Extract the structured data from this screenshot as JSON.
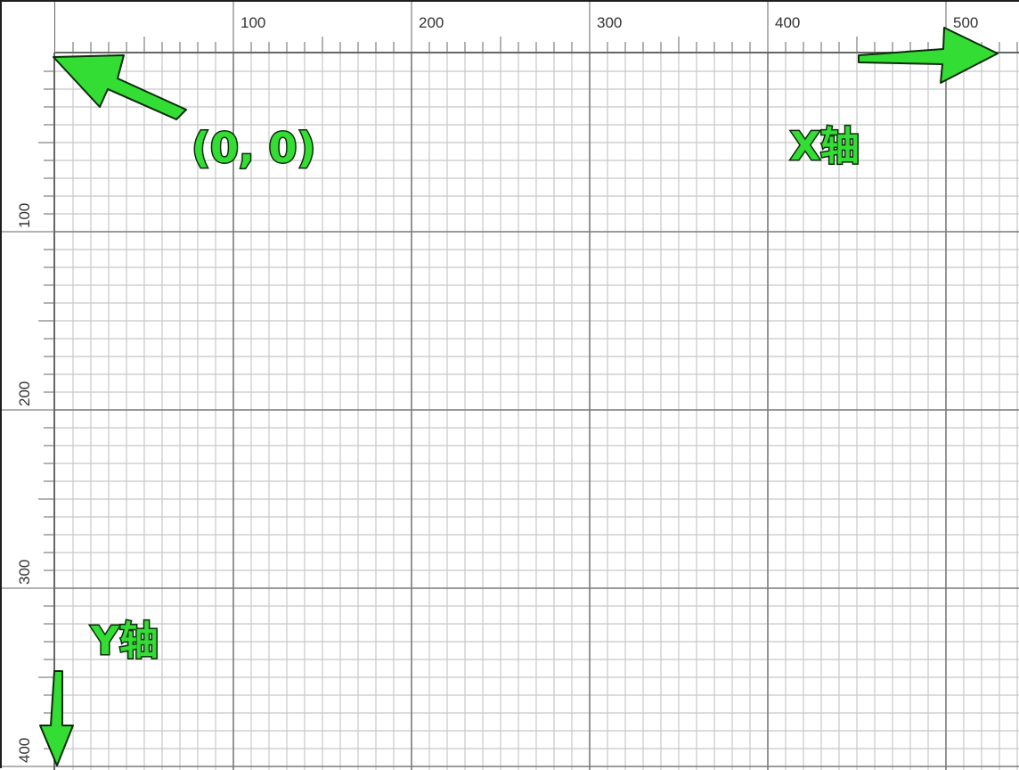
{
  "ruler": {
    "x_ticks": [
      "100",
      "200",
      "300",
      "400",
      "500"
    ],
    "y_ticks": [
      "100",
      "200",
      "300",
      "400"
    ]
  },
  "annotations": {
    "origin": "(0,  0)",
    "x_axis": "X轴",
    "y_axis": "Y轴"
  },
  "colors": {
    "annotation_green": "#33dd33",
    "annotation_outline": "#0c2a0c",
    "grid_minor": "#c8c8c8",
    "grid_major": "#7a7a7a",
    "ruler_line": "#666666"
  }
}
